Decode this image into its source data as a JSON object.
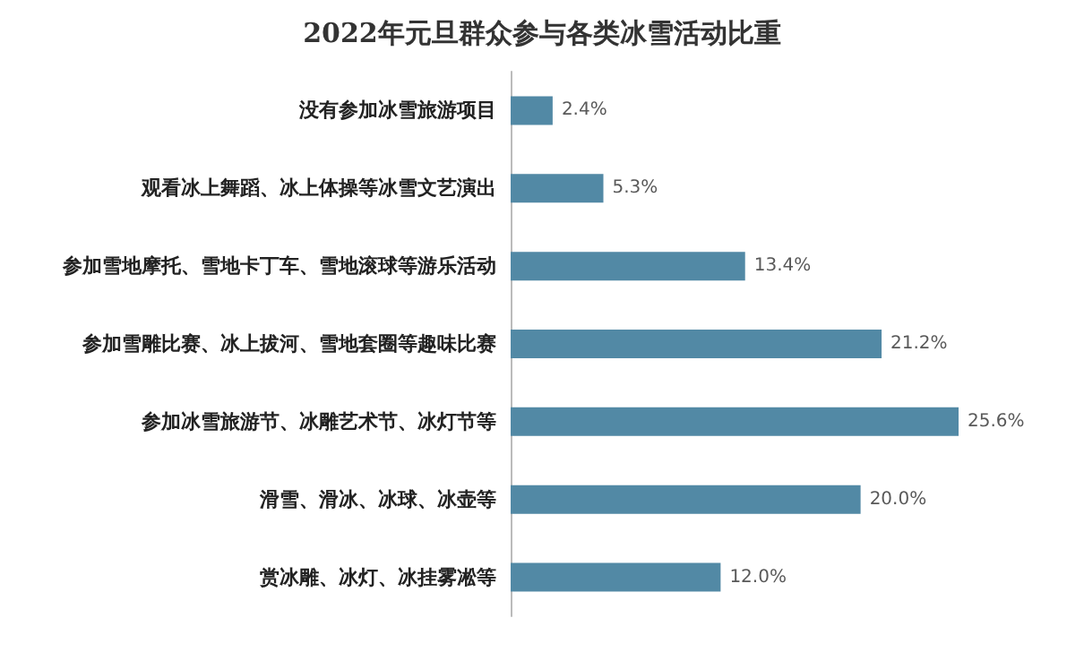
{
  "chart_data": {
    "type": "bar",
    "orientation": "horizontal",
    "title": "2022年元旦群众参与各类冰雪活动比重",
    "categories": [
      "没有参加冰雪旅游项目",
      "观看冰上舞蹈、冰上体操等冰雪文艺演出",
      "参加雪地摩托、雪地卡丁车、雪地滚球等游乐活动",
      "参加雪雕比赛、冰上拔河、雪地套圈等趣味比赛",
      "参加冰雪旅游节、冰雕艺术节、冰灯节等",
      "滑雪、滑冰、冰球、冰壶等",
      "赏冰雕、冰灯、冰挂雾凇等"
    ],
    "values": [
      2.4,
      5.3,
      13.4,
      21.2,
      25.6,
      20.0,
      12.0
    ],
    "value_labels": [
      "2.4%",
      "5.3%",
      "13.4%",
      "21.2%",
      "25.6%",
      "20.0%",
      "12.0%"
    ],
    "color": "#5289a5"
  }
}
